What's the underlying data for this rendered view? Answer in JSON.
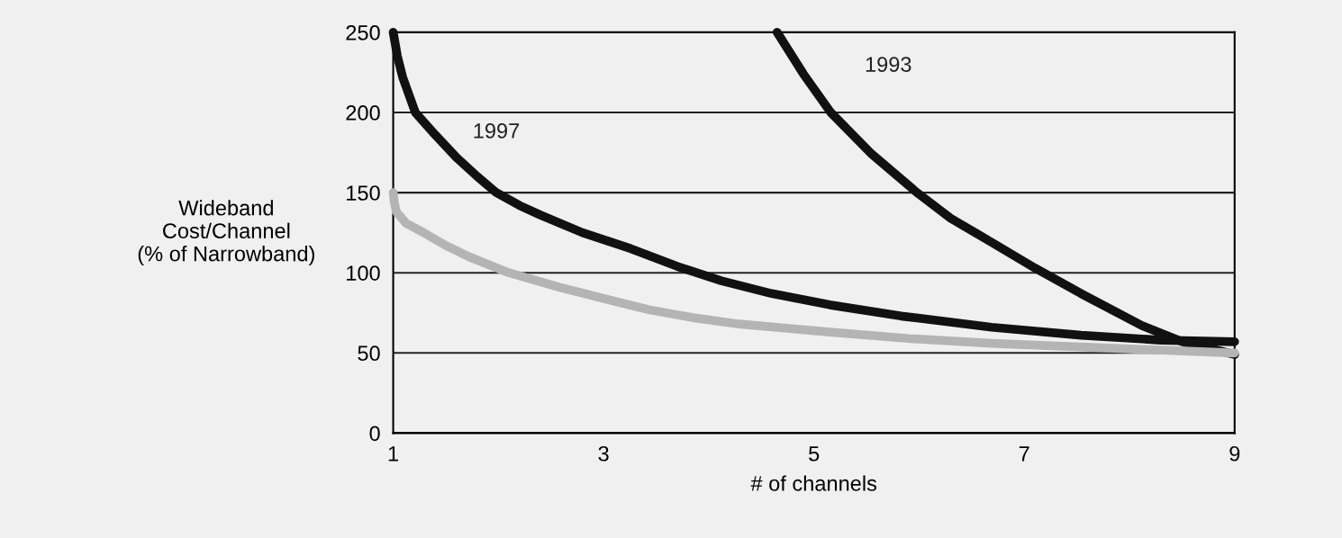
{
  "chart_data": {
    "type": "line",
    "xlabel": "# of channels",
    "ylabel": "Wideband\nCost/Channel\n(% of Narrowband)",
    "xlim": [
      1,
      9
    ],
    "xticks": [
      1,
      3,
      5,
      7,
      9
    ],
    "ylim": [
      0,
      250
    ],
    "yticks": [
      0,
      50,
      100,
      150,
      200,
      250
    ],
    "grid": "y",
    "line_style": "solid",
    "marker": "none",
    "series": [
      {
        "name": "1997",
        "color": "#111111",
        "x": [
          1,
          1.04,
          1.09,
          1.15,
          1.21,
          1.4,
          1.6,
          1.8,
          1.98,
          2.2,
          2.4,
          2.8,
          3.26,
          3.7,
          4.12,
          4.6,
          5.15,
          5.83,
          6.69,
          7.54,
          8.3,
          9
        ],
        "values": [
          250,
          235,
          222,
          211,
          200,
          186,
          172,
          160,
          150,
          142,
          136,
          125,
          115,
          104,
          95,
          87,
          80,
          73,
          66,
          61,
          58,
          57
        ]
      },
      {
        "name": "1993",
        "color": "#111111",
        "x": [
          4.65,
          4.9,
          5.16,
          5.55,
          5.98,
          6.3,
          6.69,
          7.1,
          7.54,
          8.12,
          8.5,
          9
        ],
        "values": [
          250,
          224,
          200,
          174,
          150,
          134,
          119,
          103,
          87,
          67,
          57,
          49
        ]
      },
      {
        "color": "#b4b4b4",
        "x": [
          1,
          1.01,
          1.03,
          1.12,
          1.29,
          1.5,
          1.72,
          2.1,
          2.58,
          3,
          3.43,
          3.85,
          4.29,
          5.15,
          5.9,
          6.69,
          7.8,
          9
        ],
        "values": [
          150,
          144,
          138,
          131,
          125,
          117,
          110,
          100,
          91,
          84,
          77,
          72,
          68,
          63,
          59,
          56,
          53,
          50
        ]
      }
    ]
  }
}
